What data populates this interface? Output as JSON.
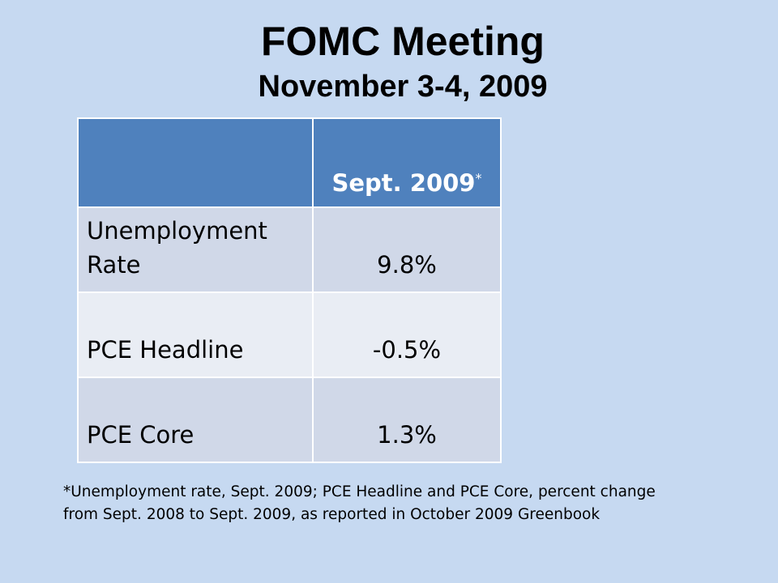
{
  "header": {
    "title": "FOMC Meeting",
    "subtitle": "November 3-4, 2009"
  },
  "table": {
    "header": [
      "",
      "Sept. 2009"
    ],
    "header_note_mark": "*",
    "rows": [
      [
        "Unemployment Rate",
        "9.8%"
      ],
      [
        "PCE Headline",
        "-0.5%"
      ],
      [
        "PCE Core",
        "1.3%"
      ]
    ]
  },
  "footnote": {
    "lines": [
      "*Unemployment rate, Sept. 2009; PCE Headline and PCE Core, percent change",
      "from Sept. 2008 to Sept. 2009, as reported in October 2009 Greenbook"
    ]
  }
}
